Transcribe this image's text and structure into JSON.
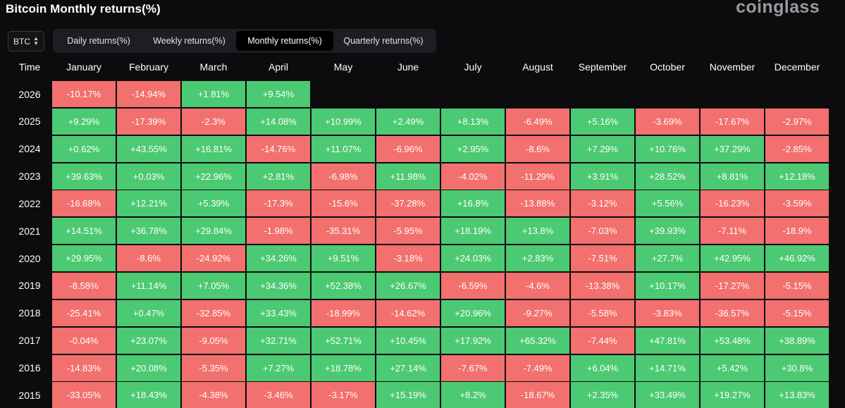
{
  "header": {
    "title": "Bitcoin Monthly returns(%)",
    "brand": "coinglass"
  },
  "coin_select": {
    "value": "BTC"
  },
  "tabs": [
    {
      "label": "Daily returns(%)",
      "active": false
    },
    {
      "label": "Weekly returns(%)",
      "active": false
    },
    {
      "label": "Monthly returns(%)",
      "active": true
    },
    {
      "label": "Quarterly returns(%)",
      "active": false
    }
  ],
  "colors": {
    "positive": "#4cc973",
    "negative": "#f2706d",
    "background": "#0c0c0e"
  },
  "table": {
    "columns": [
      "Time",
      "January",
      "February",
      "March",
      "April",
      "May",
      "June",
      "July",
      "August",
      "September",
      "October",
      "November",
      "December"
    ],
    "rows": [
      {
        "year": "2026",
        "values": [
          "-10.17%",
          "-14.94%",
          "+1.81%",
          "+9.54%"
        ]
      },
      {
        "year": "2025",
        "values": [
          "+9.29%",
          "-17.39%",
          "-2.3%",
          "+14.08%",
          "+10.99%",
          "+2.49%",
          "+8.13%",
          "-6.49%",
          "+5.16%",
          "-3.69%",
          "-17.67%",
          "-2.97%"
        ]
      },
      {
        "year": "2024",
        "values": [
          "+0.62%",
          "+43.55%",
          "+16.81%",
          "-14.76%",
          "+11.07%",
          "-6.96%",
          "+2.95%",
          "-8.6%",
          "+7.29%",
          "+10.76%",
          "+37.29%",
          "-2.85%"
        ]
      },
      {
        "year": "2023",
        "values": [
          "+39.63%",
          "+0.03%",
          "+22.96%",
          "+2.81%",
          "-6.98%",
          "+11.98%",
          "-4.02%",
          "-11.29%",
          "+3.91%",
          "+28.52%",
          "+8.81%",
          "+12.18%"
        ]
      },
      {
        "year": "2022",
        "values": [
          "-16.68%",
          "+12.21%",
          "+5.39%",
          "-17.3%",
          "-15.6%",
          "-37.28%",
          "+16.8%",
          "-13.88%",
          "-3.12%",
          "+5.56%",
          "-16.23%",
          "-3.59%"
        ]
      },
      {
        "year": "2021",
        "values": [
          "+14.51%",
          "+36.78%",
          "+29.84%",
          "-1.98%",
          "-35.31%",
          "-5.95%",
          "+18.19%",
          "+13.8%",
          "-7.03%",
          "+39.93%",
          "-7.11%",
          "-18.9%"
        ]
      },
      {
        "year": "2020",
        "values": [
          "+29.95%",
          "-8.6%",
          "-24.92%",
          "+34.26%",
          "+9.51%",
          "-3.18%",
          "+24.03%",
          "+2.83%",
          "-7.51%",
          "+27.7%",
          "+42.95%",
          "+46.92%"
        ]
      },
      {
        "year": "2019",
        "values": [
          "-8.58%",
          "+11.14%",
          "+7.05%",
          "+34.36%",
          "+52.38%",
          "+26.67%",
          "-6.59%",
          "-4.6%",
          "-13.38%",
          "+10.17%",
          "-17.27%",
          "-5.15%"
        ]
      },
      {
        "year": "2018",
        "values": [
          "-25.41%",
          "+0.47%",
          "-32.85%",
          "+33.43%",
          "-18.99%",
          "-14.62%",
          "+20.96%",
          "-9.27%",
          "-5.58%",
          "-3.83%",
          "-36.57%",
          "-5.15%"
        ]
      },
      {
        "year": "2017",
        "values": [
          "-0.04%",
          "+23.07%",
          "-9.05%",
          "+32.71%",
          "+52.71%",
          "+10.45%",
          "+17.92%",
          "+65.32%",
          "-7.44%",
          "+47.81%",
          "+53.48%",
          "+38.89%"
        ]
      },
      {
        "year": "2016",
        "values": [
          "-14.83%",
          "+20.08%",
          "-5.35%",
          "+7.27%",
          "+18.78%",
          "+27.14%",
          "-7.67%",
          "-7.49%",
          "+6.04%",
          "+14.71%",
          "+5.42%",
          "+30.8%"
        ]
      },
      {
        "year": "2015",
        "values": [
          "-33.05%",
          "+18.43%",
          "-4.38%",
          "-3.46%",
          "-3.17%",
          "+15.19%",
          "+8.2%",
          "-18.67%",
          "+2.35%",
          "+33.49%",
          "+19.27%",
          "+13.83%"
        ]
      }
    ]
  }
}
